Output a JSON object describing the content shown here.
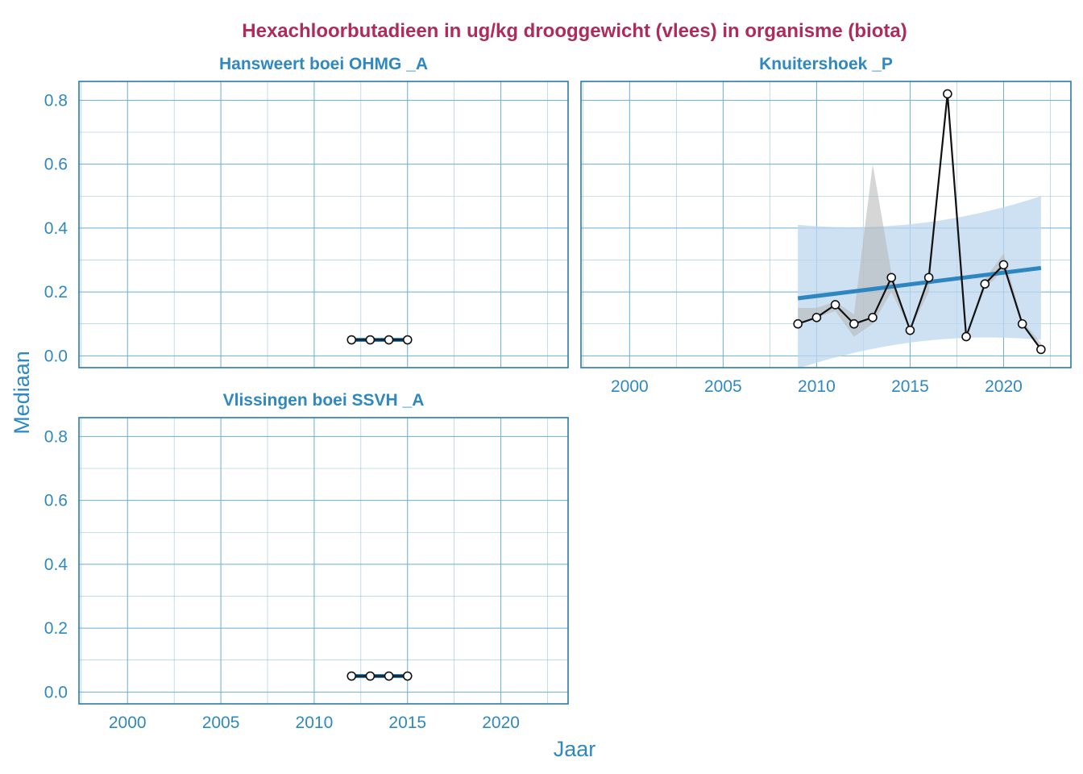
{
  "chart_data": {
    "type": "line",
    "title": "Hexachloorbutadieen in ug/kg drooggewicht (vlees) in organisme (biota)",
    "xlabel": "Jaar",
    "ylabel": "Mediaan",
    "xlim": [
      1997.4,
      2023.6
    ],
    "ylim": [
      -0.037,
      0.859
    ],
    "x_ticks": [
      2000,
      2005,
      2010,
      2015,
      2020
    ],
    "y_ticks": [
      0.0,
      0.2,
      0.4,
      0.6,
      0.8
    ],
    "grid": true,
    "colors": {
      "title": "#AD2C5B",
      "axis_text": "#2F88BF",
      "panel_border": "#2A7AA8",
      "grid": "#6AAED6",
      "trend": "#2E86C1",
      "band": "#BDD7EE",
      "range": "#B4B4B4",
      "series": "#111111"
    },
    "panels": [
      {
        "name": "Hansweert boei OHMG _A",
        "x": [
          2012,
          2013,
          2014,
          2015
        ],
        "y": [
          0.05,
          0.05,
          0.05,
          0.05
        ],
        "trend": {
          "x": [
            2012,
            2015
          ],
          "y": [
            0.05,
            0.05
          ]
        }
      },
      {
        "name": "Knuitershoek _P",
        "x": [
          2009,
          2010,
          2011,
          2012,
          2013,
          2014,
          2015,
          2016,
          2017,
          2018,
          2019,
          2020,
          2021,
          2022
        ],
        "y": [
          0.1,
          0.12,
          0.16,
          0.1,
          0.12,
          0.245,
          0.08,
          0.245,
          0.82,
          0.06,
          0.225,
          0.285,
          0.1,
          0.02
        ],
        "range_low": [
          0.1,
          0.12,
          0.14,
          0.06,
          0.1,
          0.2,
          0.08,
          0.2,
          0.82,
          0.06,
          0.21,
          0.27,
          0.1,
          0.02
        ],
        "range_high": [
          0.15,
          0.15,
          0.17,
          0.13,
          0.6,
          0.26,
          0.08,
          0.26,
          0.82,
          0.06,
          0.24,
          0.32,
          0.11,
          0.04
        ],
        "trend": {
          "x": [
            2009,
            2022
          ],
          "y": [
            0.18,
            0.275
          ]
        },
        "confidence_band": {
          "x": [
            2009,
            2022
          ],
          "lower": [
            -0.04,
            0.05
          ],
          "upper": [
            0.41,
            0.5
          ]
        }
      },
      {
        "name": "Vlissingen boei SSVH _A",
        "x": [
          2012,
          2013,
          2014,
          2015
        ],
        "y": [
          0.05,
          0.05,
          0.05,
          0.05
        ],
        "trend": {
          "x": [
            2012,
            2015
          ],
          "y": [
            0.05,
            0.05
          ]
        }
      }
    ]
  }
}
